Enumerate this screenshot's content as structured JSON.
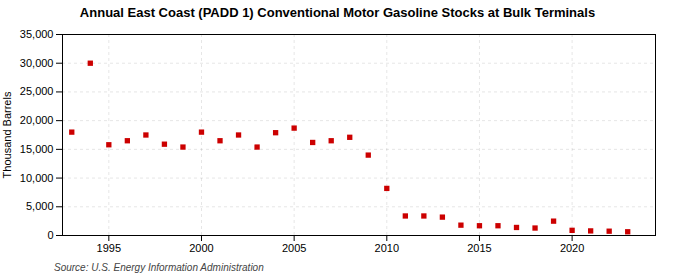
{
  "chart_data": {
    "type": "scatter",
    "title": "Annual East Coast (PADD 1) Conventional Motor Gasoline Stocks at Bulk Terminals",
    "ylabel": "Thousand Barrels",
    "source": "Source: U.S. Energy Information Administration",
    "x": [
      1993,
      1994,
      1995,
      1996,
      1997,
      1998,
      1999,
      2000,
      2001,
      2002,
      2003,
      2004,
      2005,
      2006,
      2007,
      2008,
      2009,
      2010,
      2011,
      2012,
      2013,
      2014,
      2015,
      2016,
      2017,
      2018,
      2019,
      2020,
      2021,
      2022,
      2023
    ],
    "values": [
      18000,
      30000,
      15800,
      16500,
      17500,
      15900,
      15400,
      18000,
      16500,
      17500,
      15400,
      17900,
      18700,
      16200,
      16500,
      17100,
      14000,
      8200,
      3400,
      3400,
      3200,
      1800,
      1700,
      1700,
      1400,
      1300,
      2500,
      900,
      800,
      750,
      650
    ],
    "color": "#cc0000",
    "marker": "square",
    "xlim": [
      1992.5,
      2024.5
    ],
    "xticks": [
      1995,
      2000,
      2005,
      2010,
      2015,
      2020
    ],
    "ylim": [
      0,
      35000
    ],
    "yticks": [
      0,
      {
        "value": 5000,
        "label": "5,000"
      },
      {
        "value": 10000,
        "label": "10,000"
      },
      {
        "value": 15000,
        "label": "15,000"
      },
      {
        "value": 20000,
        "label": "20,000"
      },
      {
        "value": 25000,
        "label": "25,000"
      },
      {
        "value": 30000,
        "label": "30,000"
      },
      {
        "value": 35000,
        "label": "35,000"
      }
    ],
    "grid": true
  }
}
